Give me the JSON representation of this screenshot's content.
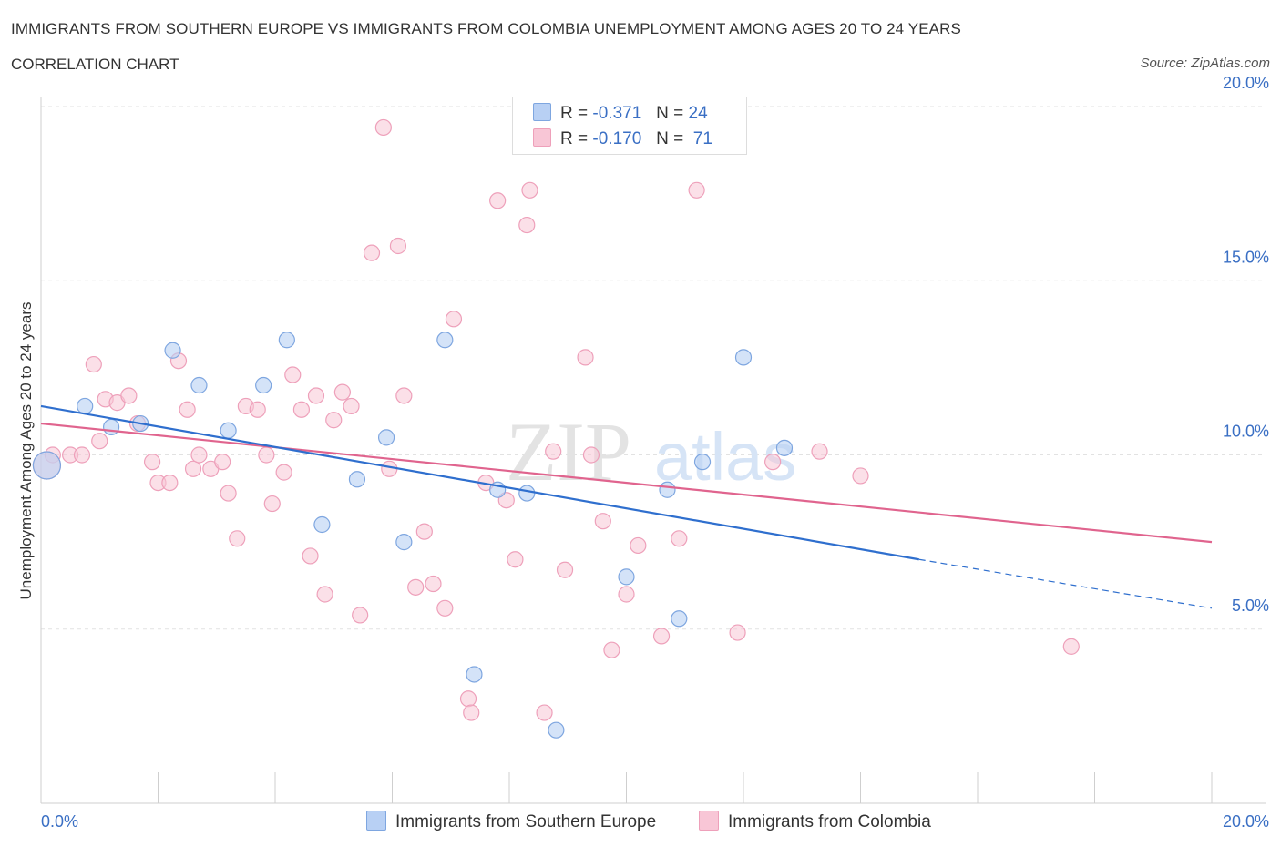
{
  "header": {
    "title": "IMMIGRANTS FROM SOUTHERN EUROPE VS IMMIGRANTS FROM COLOMBIA UNEMPLOYMENT AMONG AGES 20 TO 24 YEARS",
    "subtitle": "CORRELATION CHART",
    "source": "Source: ZipAtlas.com"
  },
  "legend": {
    "row1": {
      "r_label": "R =",
      "r_value": "-0.371",
      "n_label": "N =",
      "n_value": "24"
    },
    "row2": {
      "r_label": "R =",
      "r_value": "-0.170",
      "n_label": "N =",
      "n_value": "71"
    }
  },
  "watermark": {
    "zip": "ZIP",
    "atlas": "atlas"
  },
  "chart_data": {
    "type": "scatter",
    "ylabel": "Unemployment Among Ages 20 to 24 years",
    "xlim": [
      0,
      20
    ],
    "ylim": [
      0,
      20
    ],
    "x_tick_labels": [
      "0.0%",
      "20.0%"
    ],
    "y_tick_labels": [
      "5.0%",
      "10.0%",
      "15.0%",
      "20.0%"
    ],
    "y_ticks": [
      5,
      10,
      15,
      20
    ],
    "grid": true,
    "colors": {
      "southern_europe_fill": "#b8d0f4",
      "southern_europe_stroke": "#7ea6e0",
      "southern_europe_line": "#2f6fce",
      "colombia_fill": "#f8c6d6",
      "colombia_stroke": "#eea0ba",
      "colombia_line": "#e0648e",
      "tick_label": "#3a6fc4"
    },
    "series": [
      {
        "name": "Immigrants from Southern Europe",
        "trend": {
          "x": [
            0,
            15
          ],
          "y": [
            11.4,
            7.0
          ],
          "dashed_to": [
            20,
            5.6
          ]
        },
        "points": [
          [
            0.1,
            9.7
          ],
          [
            0.75,
            11.4
          ],
          [
            1.2,
            10.8
          ],
          [
            1.7,
            10.9
          ],
          [
            2.25,
            13.0
          ],
          [
            2.7,
            12.0
          ],
          [
            3.2,
            10.7
          ],
          [
            3.8,
            12.0
          ],
          [
            4.2,
            13.3
          ],
          [
            4.8,
            8.0
          ],
          [
            5.4,
            9.3
          ],
          [
            5.9,
            10.5
          ],
          [
            6.2,
            7.5
          ],
          [
            6.9,
            13.3
          ],
          [
            7.4,
            3.7
          ],
          [
            7.8,
            9.0
          ],
          [
            8.3,
            8.9
          ],
          [
            8.8,
            2.1
          ],
          [
            10.0,
            6.5
          ],
          [
            10.7,
            9.0
          ],
          [
            10.9,
            5.3
          ],
          [
            11.3,
            9.8
          ],
          [
            12.0,
            12.8
          ],
          [
            12.7,
            10.2
          ]
        ]
      },
      {
        "name": "Immigrants from Colombia",
        "trend": {
          "x": [
            0,
            20
          ],
          "y": [
            10.9,
            7.5
          ]
        },
        "points": [
          [
            0.2,
            10.0
          ],
          [
            0.5,
            10.0
          ],
          [
            0.7,
            10.0
          ],
          [
            0.9,
            12.6
          ],
          [
            1.0,
            10.4
          ],
          [
            1.1,
            11.6
          ],
          [
            1.3,
            11.5
          ],
          [
            1.5,
            11.7
          ],
          [
            1.65,
            10.9
          ],
          [
            1.9,
            9.8
          ],
          [
            2.0,
            9.2
          ],
          [
            2.2,
            9.2
          ],
          [
            2.35,
            12.7
          ],
          [
            2.5,
            11.3
          ],
          [
            2.6,
            9.6
          ],
          [
            2.7,
            10.0
          ],
          [
            2.9,
            9.6
          ],
          [
            3.1,
            9.8
          ],
          [
            3.2,
            8.9
          ],
          [
            3.35,
            7.6
          ],
          [
            3.5,
            11.4
          ],
          [
            3.7,
            11.3
          ],
          [
            3.85,
            10.0
          ],
          [
            3.95,
            8.6
          ],
          [
            4.15,
            9.5
          ],
          [
            4.3,
            12.3
          ],
          [
            4.45,
            11.3
          ],
          [
            4.6,
            7.1
          ],
          [
            4.7,
            11.7
          ],
          [
            4.85,
            6.0
          ],
          [
            5.0,
            11.0
          ],
          [
            5.15,
            11.8
          ],
          [
            5.3,
            11.4
          ],
          [
            5.45,
            5.4
          ],
          [
            5.65,
            15.8
          ],
          [
            5.85,
            19.4
          ],
          [
            5.95,
            9.6
          ],
          [
            6.1,
            16.0
          ],
          [
            6.2,
            11.7
          ],
          [
            6.4,
            6.2
          ],
          [
            6.55,
            7.8
          ],
          [
            6.7,
            6.3
          ],
          [
            6.9,
            5.6
          ],
          [
            7.05,
            13.9
          ],
          [
            7.3,
            3.0
          ],
          [
            7.35,
            2.6
          ],
          [
            7.6,
            9.2
          ],
          [
            7.8,
            17.3
          ],
          [
            7.95,
            8.7
          ],
          [
            8.1,
            7.0
          ],
          [
            8.3,
            16.6
          ],
          [
            8.35,
            17.6
          ],
          [
            8.6,
            2.6
          ],
          [
            8.75,
            10.1
          ],
          [
            8.95,
            6.7
          ],
          [
            9.3,
            12.8
          ],
          [
            9.4,
            10.0
          ],
          [
            9.6,
            8.1
          ],
          [
            9.75,
            4.4
          ],
          [
            10.0,
            6.0
          ],
          [
            10.2,
            7.4
          ],
          [
            10.6,
            4.8
          ],
          [
            10.8,
            19.4
          ],
          [
            10.9,
            7.6
          ],
          [
            11.2,
            17.6
          ],
          [
            11.9,
            4.9
          ],
          [
            12.5,
            9.8
          ],
          [
            13.3,
            10.1
          ],
          [
            14.0,
            9.4
          ],
          [
            17.6,
            4.5
          ],
          [
            0.1,
            9.7
          ]
        ]
      }
    ]
  },
  "bottom_legend": {
    "item1": "Immigrants from Southern Europe",
    "item2": "Immigrants from Colombia"
  }
}
